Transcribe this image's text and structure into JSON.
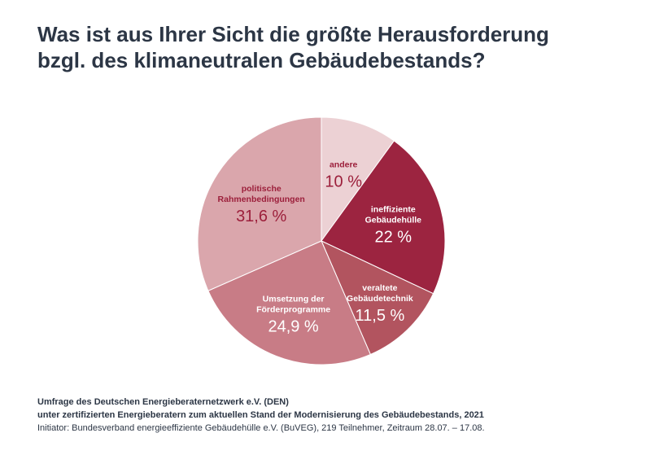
{
  "title": {
    "line1": "Was ist aus Ihrer Sicht die größte Herausforderung",
    "line2": "bzgl. des klimaneutralen Gebäudebestands?"
  },
  "chart_data": {
    "type": "pie",
    "title": "Was ist aus Ihrer Sicht die größte Herausforderung bzgl. des klimaneutralen Gebäudebestands?",
    "slices": [
      {
        "name": [
          "andere"
        ],
        "value": 10,
        "value_label": "10 %",
        "color": "#ecd1d4",
        "label_color": "#9c1f3b"
      },
      {
        "name": [
          "ineffiziente",
          "Gebäudehülle"
        ],
        "value": 22,
        "value_label": "22 %",
        "color": "#9c2440",
        "label_color": "#ffffff"
      },
      {
        "name": [
          "veraltete",
          "Gebäudetechnik"
        ],
        "value": 11.5,
        "value_label": "11,5 %",
        "color": "#b2545f",
        "label_color": "#ffffff"
      },
      {
        "name": [
          "Umsetzung der",
          "Förderprogramme"
        ],
        "value": 24.9,
        "value_label": "24,9 %",
        "color": "#c87c86",
        "label_color": "#ffffff"
      },
      {
        "name": [
          "politische",
          "Rahmenbedingungen"
        ],
        "value": 31.6,
        "value_label": "31,6 %",
        "color": "#daa6ac",
        "label_color": "#9c1f3b"
      }
    ]
  },
  "footer": {
    "line1": "Umfrage des Deutschen Energieberaternetzwerk e.V. (DEN)",
    "line2": "unter zertifizierten Energieberatern zum aktuellen Stand der Modernisierung des Gebäudebestands, 2021",
    "line3": "Initiator: Bundesverband energieeffiziente Gebäudehülle e.V. (BuVEG), 219 Teilnehmer, Zeitraum 28.07. – 17.08."
  }
}
